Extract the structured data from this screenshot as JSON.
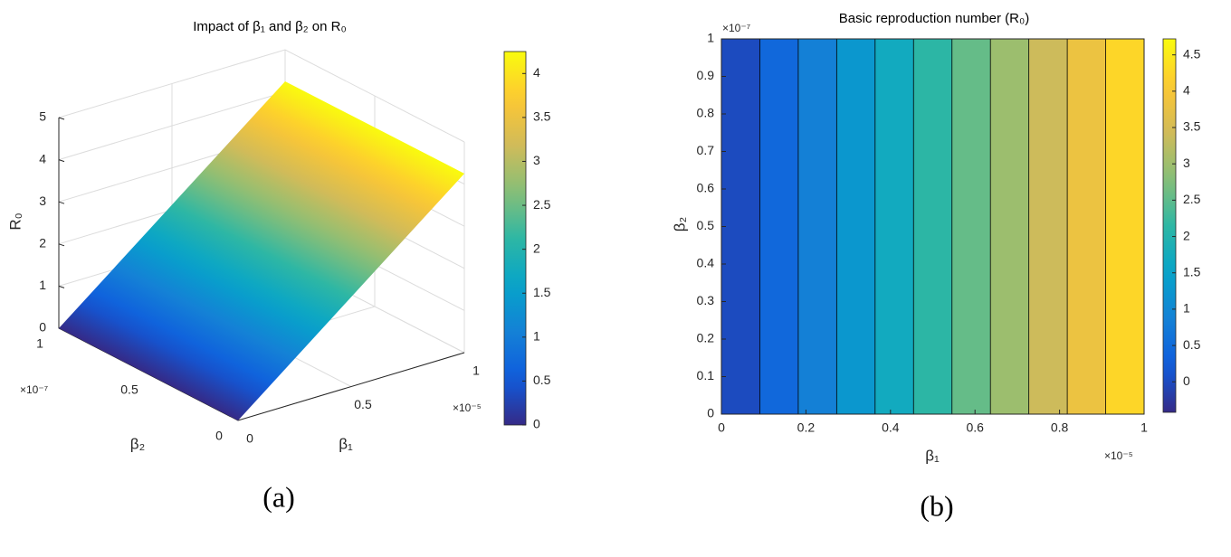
{
  "chart_data": [
    {
      "type": "surface3d",
      "title": "Impact of β₁ and β₂ on R₀",
      "x_label": "β₁",
      "y_label": "β₂",
      "z_label": "R₀",
      "x_exponent": "×10⁻⁵",
      "y_exponent": "×10⁻⁷",
      "x": [
        0,
        1
      ],
      "y": [
        0,
        1
      ],
      "z": [
        [
          0,
          4.25
        ],
        [
          0,
          4.25
        ]
      ],
      "xlim": [
        0,
        1
      ],
      "ylim": [
        0,
        1
      ],
      "zlim": [
        0,
        5
      ],
      "xticks": [
        0,
        0.5,
        1
      ],
      "yticks": [
        0,
        0.5,
        1
      ],
      "zticks": [
        0,
        1,
        2,
        3,
        4,
        5
      ],
      "colormap": "parula",
      "clim": [
        0,
        4.25
      ],
      "colorbar_ticks": [
        0,
        0.5,
        1,
        1.5,
        2,
        2.5,
        3,
        3.5,
        4
      ],
      "grid": true,
      "caption": "(a)"
    },
    {
      "type": "contour",
      "title": "Basic reproduction number (R₀)",
      "x_label": "β₁",
      "y_label": "β₂",
      "x_exponent": "×10⁻⁵",
      "y_exponent": "×10⁻⁷",
      "xlim": [
        0,
        1
      ],
      "ylim": [
        0,
        1
      ],
      "xticks": [
        0,
        0.2,
        0.4,
        0.6,
        0.8,
        1
      ],
      "yticks": [
        0,
        0.1,
        0.2,
        0.3,
        0.4,
        0.5,
        0.6,
        0.7,
        0.8,
        0.9,
        1
      ],
      "band_edges": [
        0,
        0.0909,
        0.1818,
        0.2727,
        0.3636,
        0.4545,
        0.5455,
        0.6364,
        0.7273,
        0.8182,
        0.9091,
        1
      ],
      "band_values": [
        0,
        0.425,
        0.85,
        1.275,
        1.7,
        2.125,
        2.55,
        2.975,
        3.4,
        3.825,
        4.25
      ],
      "colormap": "parula",
      "clim": [
        -0.42,
        4.72
      ],
      "colorbar_ticks": [
        0,
        0.5,
        1,
        1.5,
        2,
        2.5,
        3,
        3.5,
        4,
        4.5
      ],
      "caption": "(b)"
    }
  ]
}
